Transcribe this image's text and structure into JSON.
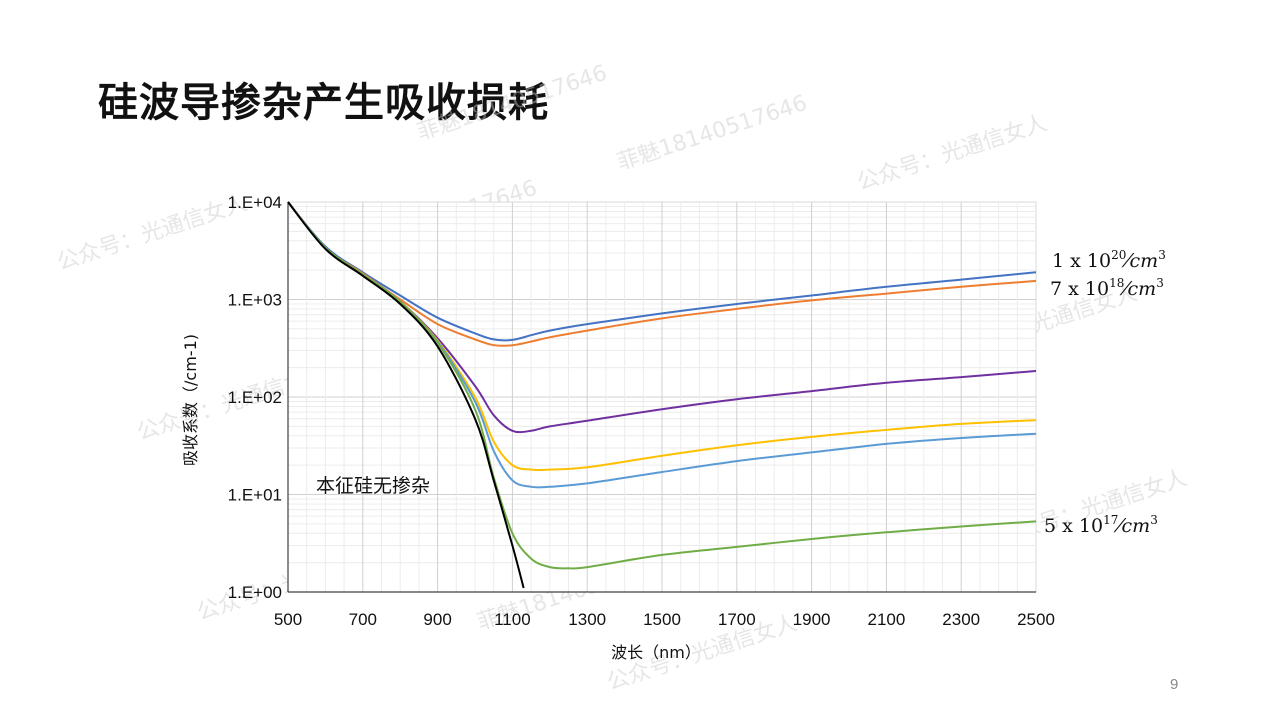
{
  "slide": {
    "title": "硅波导掺杂产生吸收损耗",
    "page_number": "9"
  },
  "watermarks": [
    "公众号：光通信女人",
    "菲魅18140517646"
  ],
  "chart_data": {
    "type": "line",
    "title": "",
    "xlabel": "波长（nm）",
    "ylabel": "吸收系数（/cm-1)",
    "xlim": [
      500,
      2500
    ],
    "ylim": [
      1,
      10000
    ],
    "yscale": "log",
    "grid": true,
    "x_ticks": [
      "500",
      "700",
      "900",
      "1100",
      "1300",
      "1500",
      "1700",
      "1900",
      "2100",
      "2300",
      "2500"
    ],
    "y_ticks": [
      "1.E+00",
      "1.E+01",
      "1.E+02",
      "1.E+03",
      "1.E+04"
    ],
    "annotation": "本征硅无掺杂",
    "series": [
      {
        "key": "dop-1e20",
        "color": "#4472c4",
        "label_base": "1 x 10",
        "label_exp": "20",
        "label_unit": "⁄cm",
        "x": [
          500,
          600,
          700,
          800,
          900,
          1000,
          1050,
          1100,
          1150,
          1200,
          1300,
          1500,
          1700,
          1900,
          2100,
          2300,
          2500
        ],
        "y": [
          10000,
          3500,
          1900,
          1100,
          650,
          450,
          390,
          385,
          430,
          480,
          560,
          720,
          900,
          1100,
          1350,
          1600,
          1900
        ]
      },
      {
        "key": "dop-7e18",
        "color": "#ed7d31",
        "label_base": "7 x 10",
        "label_exp": "18",
        "label_unit": "⁄cm",
        "x": [
          500,
          600,
          700,
          800,
          900,
          1000,
          1050,
          1100,
          1150,
          1200,
          1300,
          1500,
          1700,
          1900,
          2100,
          2300,
          2500
        ],
        "y": [
          10000,
          3400,
          1850,
          1000,
          560,
          390,
          340,
          340,
          370,
          410,
          480,
          640,
          800,
          980,
          1150,
          1350,
          1550
        ]
      },
      {
        "key": "dop-purple",
        "color": "#7030a0",
        "x": [
          500,
          600,
          700,
          800,
          900,
          1000,
          1050,
          1100,
          1150,
          1200,
          1300,
          1500,
          1700,
          1900,
          2100,
          2300,
          2500
        ],
        "y": [
          10000,
          3400,
          1800,
          950,
          400,
          130,
          65,
          45,
          45,
          50,
          57,
          75,
          95,
          115,
          140,
          160,
          185
        ]
      },
      {
        "key": "dop-yellow",
        "color": "#ffc000",
        "x": [
          500,
          600,
          700,
          800,
          900,
          1000,
          1050,
          1100,
          1150,
          1200,
          1300,
          1500,
          1700,
          1900,
          2100,
          2300,
          2500
        ],
        "y": [
          10000,
          3400,
          1800,
          950,
          380,
          100,
          35,
          20,
          18,
          18,
          19,
          25,
          32,
          39,
          46,
          53,
          58
        ]
      },
      {
        "key": "dop-lightblue",
        "color": "#5b9bd5",
        "x": [
          500,
          600,
          700,
          800,
          900,
          1000,
          1050,
          1100,
          1150,
          1200,
          1300,
          1500,
          1700,
          1900,
          2100,
          2300,
          2500
        ],
        "y": [
          10000,
          3400,
          1800,
          950,
          370,
          90,
          28,
          14,
          12,
          12,
          13,
          17,
          22,
          27,
          33,
          38,
          42
        ]
      },
      {
        "key": "dop-5e17",
        "color": "#70ad47",
        "label_base": "5 x 10",
        "label_exp": "17",
        "label_unit": "⁄cm",
        "x": [
          500,
          600,
          700,
          800,
          900,
          1000,
          1050,
          1100,
          1150,
          1200,
          1250,
          1300,
          1500,
          1700,
          1900,
          2100,
          2300,
          2500
        ],
        "y": [
          10000,
          3400,
          1800,
          950,
          360,
          75,
          15,
          4,
          2.2,
          1.8,
          1.75,
          1.8,
          2.4,
          2.9,
          3.5,
          4.1,
          4.7,
          5.3
        ]
      },
      {
        "key": "intrinsic",
        "color": "#000000",
        "x": [
          500,
          600,
          700,
          800,
          900,
          1000,
          1050,
          1100,
          1130
        ],
        "y": [
          10000,
          3300,
          1750,
          900,
          330,
          60,
          14,
          3,
          1.1
        ]
      }
    ]
  }
}
